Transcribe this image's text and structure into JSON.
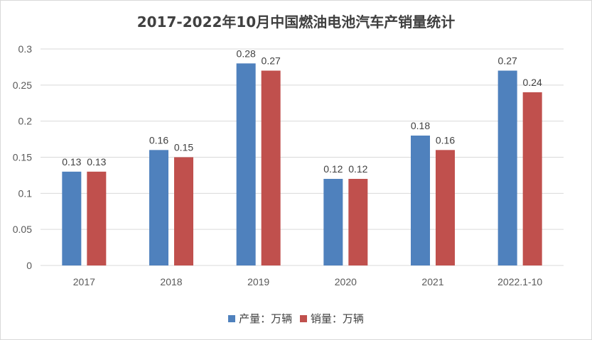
{
  "chart_data": {
    "type": "bar",
    "title": "2017-2022年10月中国燃油电池汽车产销量统计",
    "categories": [
      "2017",
      "2018",
      "2019",
      "2020",
      "2021",
      "2022.1-10"
    ],
    "series": [
      {
        "name": "产量：万辆",
        "values": [
          0.13,
          0.16,
          0.28,
          0.12,
          0.18,
          0.27
        ],
        "color": "#4f81bd"
      },
      {
        "name": "销量：万辆",
        "values": [
          0.13,
          0.15,
          0.27,
          0.12,
          0.16,
          0.24
        ],
        "color": "#c0504d"
      }
    ],
    "ylim": [
      0,
      0.3
    ],
    "yticks": [
      "0",
      "0.05",
      "0.1",
      "0.15",
      "0.2",
      "0.25",
      "0.3"
    ],
    "grid": true,
    "legend": "bottom"
  }
}
